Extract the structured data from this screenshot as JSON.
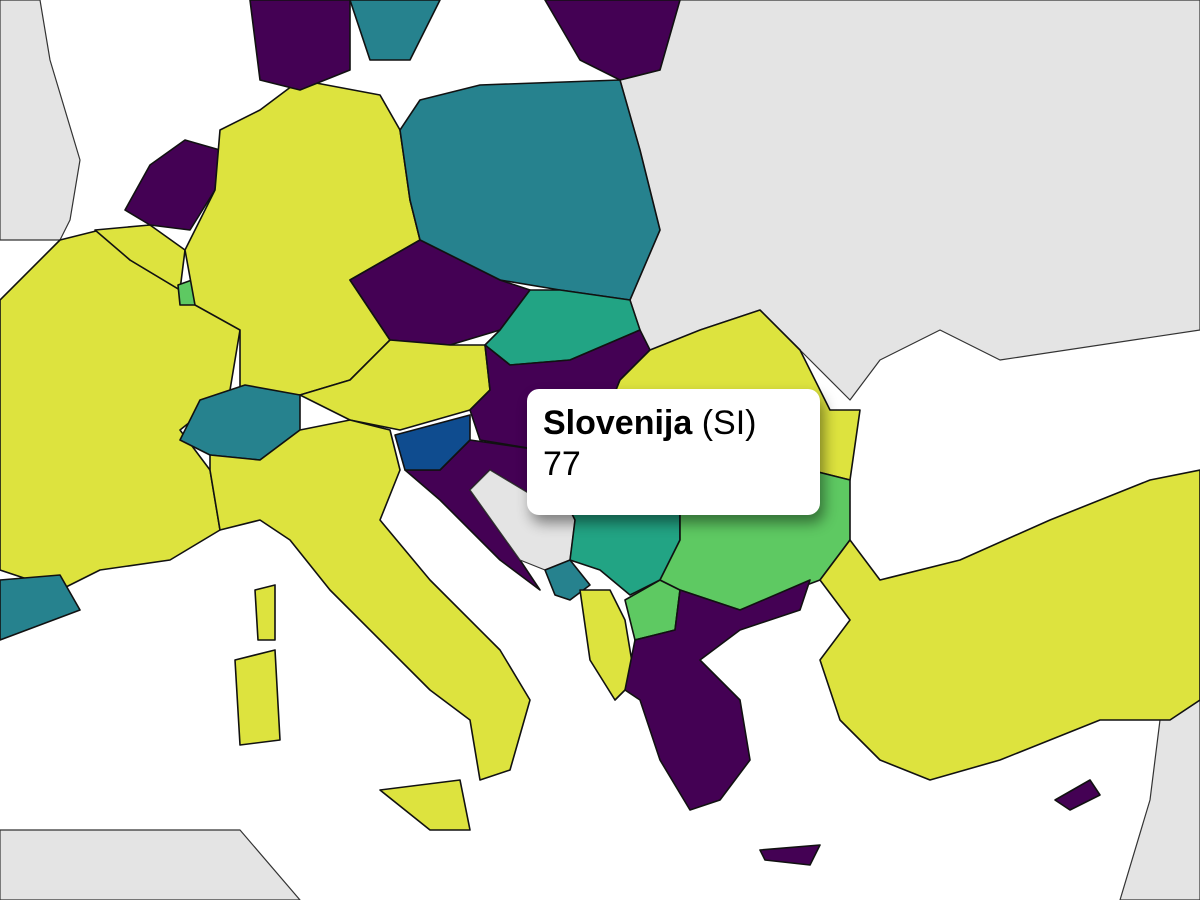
{
  "tooltip": {
    "name": "Slovenija",
    "code": "(SI)",
    "value": "77"
  },
  "colors": {
    "sea": "#ffffff",
    "no_data": "#e4e4e4",
    "purple": "#440154",
    "teal": "#26828e",
    "teal_green": "#22a484",
    "green": "#5ec962",
    "yellow": "#dde33e",
    "dark_blue": "#0f4c8f"
  }
}
